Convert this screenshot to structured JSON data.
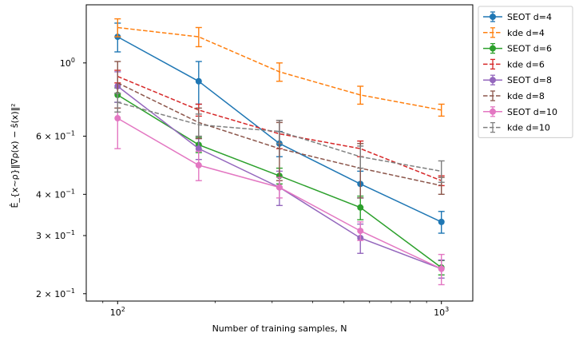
{
  "chart_data": {
    "type": "line",
    "xlabel": "Number of training samples, N",
    "ylabel": "Ê_{x~ρ}‖∇ρ(x) − ŝ(x)‖²",
    "xscale": "log",
    "yscale": "log",
    "xlim": [
      80,
      1250
    ],
    "ylim": [
      0.19,
      1.5
    ],
    "grid": false,
    "legend_position": "outside-top-right",
    "x_ticks": [
      {
        "value": 100,
        "base": "10",
        "exp": "2"
      },
      {
        "value": 1000,
        "base": "10",
        "exp": "3"
      }
    ],
    "y_ticks": [
      {
        "value": 0.2,
        "label": "2 × 10",
        "exp": "−1"
      },
      {
        "value": 0.3,
        "label": "3 × 10",
        "exp": "−1"
      },
      {
        "value": 0.4,
        "label": "4 × 10",
        "exp": "−1"
      },
      {
        "value": 0.6,
        "label": "6 × 10",
        "exp": "−1"
      },
      {
        "value": 1.0,
        "label": "10",
        "exp": "0"
      }
    ],
    "x": [
      100,
      178,
      316,
      562,
      1000
    ],
    "series": [
      {
        "name": "SEOT d=4",
        "style": "solid",
        "color": "#1f77b4",
        "values": [
          1.2,
          0.88,
          0.57,
          0.43,
          0.33
        ],
        "err": [
          0.12,
          0.13,
          0.05,
          0.04,
          0.025
        ]
      },
      {
        "name": "kde d=4",
        "style": "dashed",
        "color": "#ff7f0e",
        "values": [
          1.28,
          1.2,
          0.94,
          0.8,
          0.72
        ],
        "err": [
          0.08,
          0.08,
          0.06,
          0.05,
          0.03
        ]
      },
      {
        "name": "SEOT d=6",
        "style": "solid",
        "color": "#2ca02c",
        "values": [
          0.8,
          0.565,
          0.455,
          0.365,
          0.24
        ],
        "err": [
          0.04,
          0.03,
          0.025,
          0.03,
          0.012
        ]
      },
      {
        "name": "kde d=6",
        "style": "dashed",
        "color": "#d62728",
        "values": [
          0.91,
          0.72,
          0.61,
          0.55,
          0.44
        ],
        "err": [
          0.04,
          0.03,
          0.06,
          0.03,
          0.015
        ]
      },
      {
        "name": "SEOT d=8",
        "style": "solid",
        "color": "#9467bd",
        "values": [
          0.85,
          0.55,
          0.42,
          0.295,
          0.238
        ],
        "err": [
          0.09,
          0.04,
          0.05,
          0.03,
          0.015
        ]
      },
      {
        "name": "kde d=8",
        "style": "dashed",
        "color": "#8c564b",
        "values": [
          0.87,
          0.66,
          0.55,
          0.48,
          0.425
        ],
        "err": [
          0.14,
          0.07,
          0.11,
          0.09,
          0.025
        ]
      },
      {
        "name": "SEOT d=10",
        "style": "solid",
        "color": "#e377c2",
        "values": [
          0.68,
          0.49,
          0.42,
          0.31,
          0.238
        ],
        "err": [
          0.13,
          0.05,
          0.03,
          0.02,
          0.025
        ]
      },
      {
        "name": "kde d=10",
        "style": "dashed",
        "color": "#7f7f7f",
        "values": [
          0.76,
          0.65,
          0.62,
          0.52,
          0.47
        ],
        "err": [
          0.05,
          0.05,
          0.05,
          0.04,
          0.035
        ]
      }
    ]
  }
}
